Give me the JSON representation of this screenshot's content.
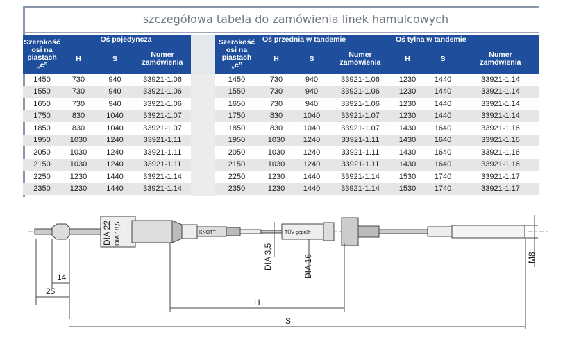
{
  "title": "szczegółowa tabela do zamówienia linek hamulcowych",
  "left_table": {
    "headers": {
      "width": [
        "Szerokość",
        "osi na",
        "piastach",
        "„c”"
      ],
      "group": "Oś pojedyncza",
      "h": "H",
      "s": "S",
      "number": [
        "Numer",
        "zamówienia"
      ]
    },
    "rows": [
      [
        "1450",
        "730",
        "940",
        "33921-1.06"
      ],
      [
        "1550",
        "730",
        "940",
        "33921-1.06"
      ],
      [
        "1650",
        "730",
        "940",
        "33921-1.06"
      ],
      [
        "1750",
        "830",
        "1040",
        "33921-1.07"
      ],
      [
        "1850",
        "830",
        "1040",
        "33921-1.07"
      ],
      [
        "1950",
        "1030",
        "1240",
        "33921-1.11"
      ],
      [
        "2050",
        "1030",
        "1240",
        "33921-1.11"
      ],
      [
        "2150",
        "1030",
        "1240",
        "33921-1.11"
      ],
      [
        "2250",
        "1230",
        "1440",
        "33921-1.14"
      ],
      [
        "2350",
        "1230",
        "1440",
        "33921-1.14"
      ]
    ]
  },
  "right_table": {
    "headers": {
      "width": [
        "Szerokość",
        "osi na",
        "piastach",
        "„c”"
      ],
      "group_front": "Oś przednia w tandemie",
      "group_rear": "Oś tylna w tandemie",
      "h": "H",
      "s": "S",
      "number": [
        "Numer",
        "zamówienia"
      ]
    },
    "rows": [
      [
        "1450",
        "730",
        "940",
        "33921-1.06",
        "1230",
        "1440",
        "33921-1.14"
      ],
      [
        "1550",
        "730",
        "940",
        "33921-1.06",
        "1230",
        "1440",
        "33921-1.14"
      ],
      [
        "1650",
        "730",
        "940",
        "33921-1.06",
        "1230",
        "1440",
        "33921-1.14"
      ],
      [
        "1750",
        "830",
        "1040",
        "33921-1.07",
        "1230",
        "1440",
        "33921-1.14"
      ],
      [
        "1850",
        "830",
        "1040",
        "33921-1.07",
        "1430",
        "1640",
        "33921-1.16"
      ],
      [
        "1950",
        "1030",
        "1240",
        "33921-1.11",
        "1430",
        "1640",
        "33921-1.16"
      ],
      [
        "2050",
        "1030",
        "1240",
        "33921-1.11",
        "1430",
        "1640",
        "33921-1.16"
      ],
      [
        "2150",
        "1030",
        "1240",
        "33921-1.11",
        "1430",
        "1640",
        "33921-1.16"
      ],
      [
        "2250",
        "1230",
        "1440",
        "33921-1.14",
        "1530",
        "1740",
        "33921-1.17"
      ],
      [
        "2350",
        "1230",
        "1440",
        "33921-1.14",
        "1530",
        "1740",
        "33921-1.17"
      ]
    ]
  },
  "diagram": {
    "dia22": "DIA 22",
    "dia185": "DIA 18,5",
    "dia35": "DIA 3,5",
    "dia16": "DIA 16",
    "m8": "M8",
    "d14": "14",
    "d25": "25",
    "h": "H",
    "s": "S",
    "stamp1": "KNOTT",
    "stamp2": "TÜV-geprüft"
  }
}
